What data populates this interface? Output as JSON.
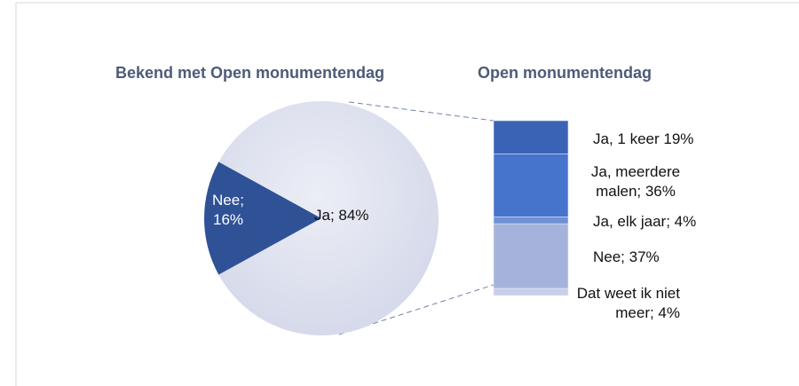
{
  "chart_data": [
    {
      "type": "pie",
      "title": "Bekend met Open monumentendag",
      "values": [
        16,
        84
      ],
      "value_labels": [
        "Nee; 16%",
        "Ja; 84%"
      ],
      "colors": [
        "#2f5196",
        "#dde0ee"
      ]
    },
    {
      "type": "stacked_bar",
      "title": "Open monumentendag",
      "values": [
        19,
        36,
        4,
        37,
        4
      ],
      "value_labels": [
        "Ja, 1 keer  19%",
        "Ja, meerdere malen; 36%",
        "Ja, elk jaar; 4%",
        "Nee; 37%",
        "Dat weet ik niet meer; 4%"
      ],
      "colors": [
        "#3a63b6",
        "#4673cc",
        "#7090d4",
        "#a5b3dc",
        "#c8cfea"
      ]
    }
  ]
}
